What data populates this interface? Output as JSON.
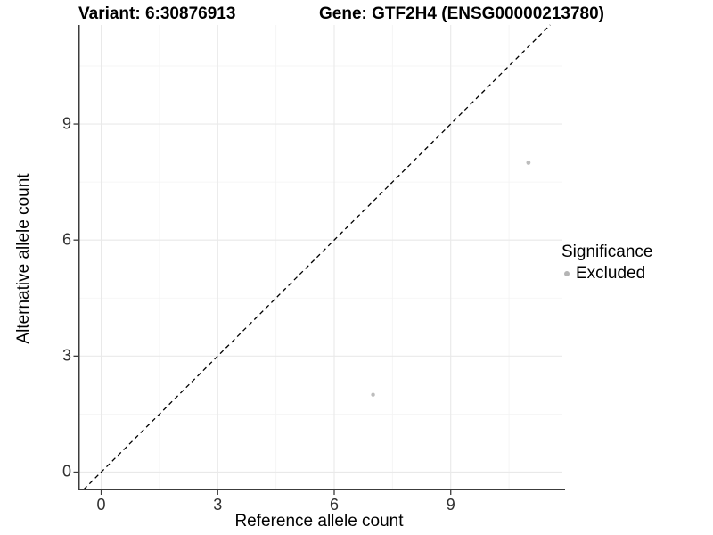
{
  "chart_data": {
    "type": "scatter",
    "title_left": "Variant: 6:30876913",
    "title_right": "Gene: GTF2H4 (ENSG00000213780)",
    "xlabel": "Reference allele count",
    "ylabel": "Alternative allele count",
    "xlim": [
      -0.575,
      11.875
    ],
    "ylim": [
      -0.45,
      11.56
    ],
    "x_ticks": [
      0,
      3,
      6,
      9
    ],
    "y_ticks": [
      0,
      3,
      6,
      9
    ],
    "x_minor": [
      1.5,
      4.5,
      7.5,
      10.5
    ],
    "y_minor": [
      1.5,
      4.5,
      7.5,
      10.5
    ],
    "grid": {
      "major_color": "#e9e9e9",
      "minor_color": "#f3f3f3",
      "background": "#ffffff"
    },
    "axis_color": "#3c3c3c",
    "identity_line": {
      "style": "dashed",
      "color": "#000000",
      "equation": "y = x"
    },
    "series": [
      {
        "name": "Excluded",
        "color": "#bdbdbd",
        "points": [
          {
            "x": 7,
            "y": 2,
            "r": 2.2
          },
          {
            "x": 11,
            "y": 8,
            "r": 2.4
          }
        ]
      }
    ],
    "legend": {
      "title": "Significance",
      "items": [
        {
          "label": "Excluded",
          "color": "#b5b5b5"
        }
      ]
    }
  }
}
